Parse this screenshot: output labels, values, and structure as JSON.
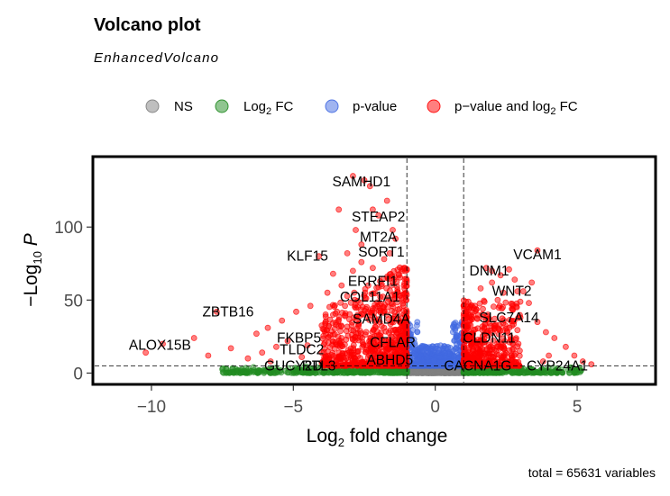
{
  "title": "Volcano plot",
  "subtitle": "EnhancedVolcano",
  "caption": "total = 65631 variables",
  "legend": [
    {
      "name": "NS",
      "color": "#808080"
    },
    {
      "name": "Log2 FC",
      "color": "#228B22"
    },
    {
      "name": "p-value",
      "color": "#4169E1"
    },
    {
      "name": "p−value and log2 FC",
      "color": "#FF0000"
    }
  ],
  "chart_data": {
    "type": "scatter",
    "title": "Volcano plot",
    "subtitle": "EnhancedVolcano",
    "xlabel": "Log2 fold change",
    "ylabel": "−Log10 P",
    "xlim": [
      -12,
      7.7
    ],
    "ylim": [
      -6.5,
      147
    ],
    "xticks": [
      -10,
      -5,
      0,
      5
    ],
    "yticks": [
      0,
      50,
      100
    ],
    "fc_cutoff": 1,
    "p_cutoff_log10": 5,
    "grid": false,
    "legend_position": "top",
    "labeled_genes": [
      {
        "gene": "SAMHD1",
        "x": -2.6,
        "y": 131
      },
      {
        "gene": "STEAP2",
        "x": -2.0,
        "y": 107
      },
      {
        "gene": "MT2A",
        "x": -2.0,
        "y": 93
      },
      {
        "gene": "SORT1",
        "x": -1.9,
        "y": 83
      },
      {
        "gene": "KLF15",
        "x": -4.5,
        "y": 80
      },
      {
        "gene": "ERRFI1",
        "x": -2.2,
        "y": 63
      },
      {
        "gene": "COL11A1",
        "x": -2.3,
        "y": 52
      },
      {
        "gene": "ZBTB16",
        "x": -7.3,
        "y": 42
      },
      {
        "gene": "SAMD4A",
        "x": -1.9,
        "y": 37
      },
      {
        "gene": "FKBP5",
        "x": -4.8,
        "y": 24
      },
      {
        "gene": "TLDC2",
        "x": -4.7,
        "y": 16
      },
      {
        "gene": "CFLAR",
        "x": -1.5,
        "y": 21
      },
      {
        "gene": "ALOX15B",
        "x": -9.7,
        "y": 19
      },
      {
        "gene": "ABHD5",
        "x": -1.6,
        "y": 9
      },
      {
        "gene": "GUCY2D",
        "x": -5.0,
        "y": 5
      },
      {
        "gene": "RTL3",
        "x": -4.1,
        "y": 5
      },
      {
        "gene": "CACNA1G",
        "x": 1.5,
        "y": 5
      },
      {
        "gene": "CYP24A1",
        "x": 4.3,
        "y": 5
      },
      {
        "gene": "CLDN11",
        "x": 1.9,
        "y": 24
      },
      {
        "gene": "SLC7A14",
        "x": 2.6,
        "y": 38
      },
      {
        "gene": "WNT2",
        "x": 2.7,
        "y": 56
      },
      {
        "gene": "DNM1",
        "x": 1.9,
        "y": 70
      },
      {
        "gene": "VCAM1",
        "x": 3.6,
        "y": 81
      }
    ]
  }
}
